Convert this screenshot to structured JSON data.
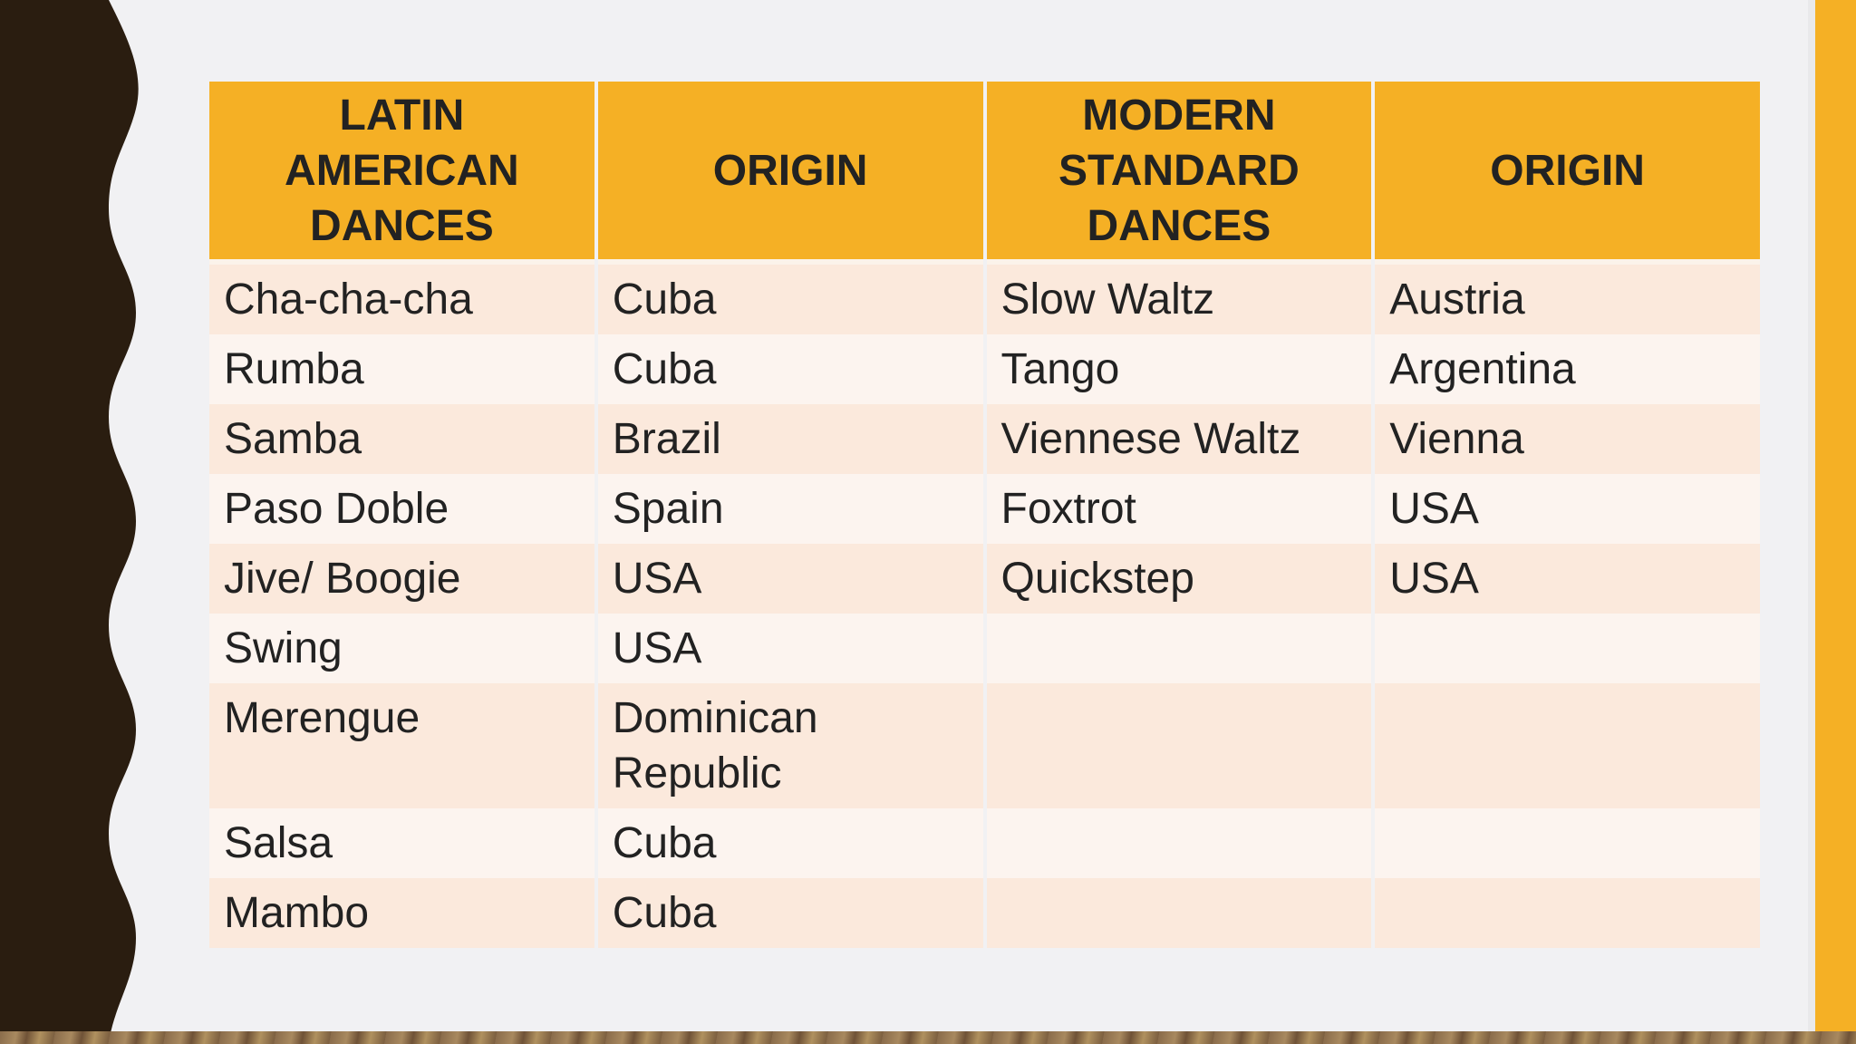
{
  "table": {
    "headers": [
      "LATIN AMERICAN DANCES",
      "ORIGIN",
      "MODERN STANDARD DANCES",
      "ORIGIN"
    ],
    "rows": [
      [
        "Cha-cha-cha",
        "Cuba",
        "Slow Waltz",
        "Austria"
      ],
      [
        "Rumba",
        "Cuba",
        "Tango",
        "Argentina"
      ],
      [
        "Samba",
        "Brazil",
        "Viennese Waltz",
        "Vienna"
      ],
      [
        "Paso Doble",
        "Spain",
        "Foxtrot",
        "USA"
      ],
      [
        "Jive/ Boogie",
        "USA",
        "Quickstep",
        "USA"
      ],
      [
        "Swing",
        "USA",
        "",
        ""
      ],
      [
        "Merengue",
        "Dominican Republic",
        "",
        ""
      ],
      [
        "Salsa",
        "Cuba",
        "",
        ""
      ],
      [
        "Mambo",
        "Cuba",
        "",
        ""
      ]
    ]
  },
  "colors": {
    "header_bg": "#f5b025",
    "row_odd": "#fbe9dc",
    "row_even": "#fcf4ef",
    "left_band": "#2a1d10",
    "accent_band": "#f5b025"
  }
}
